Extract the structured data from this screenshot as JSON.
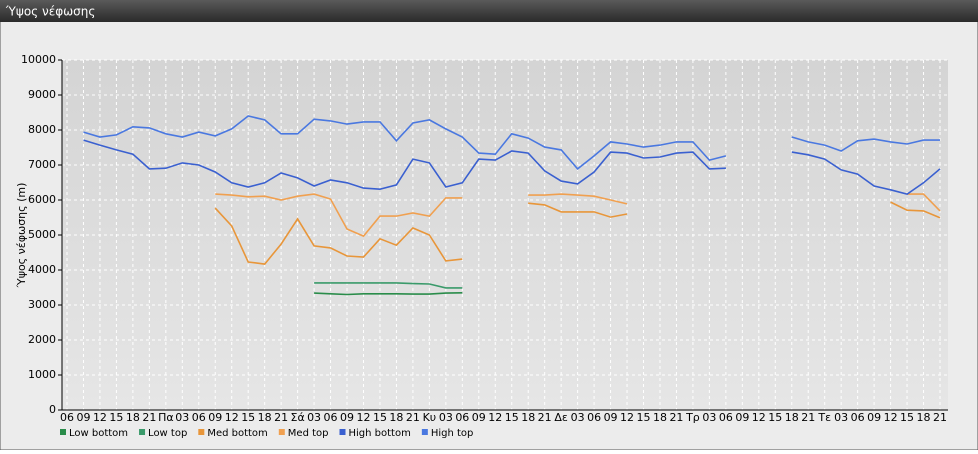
{
  "chart_data": {
    "type": "line",
    "title": "Ύψος νέφωσης",
    "y_label": "Ύψος νέφωσης (m)",
    "categories": [
      "06",
      "09",
      "12",
      "15",
      "18",
      "21",
      "Πα",
      "03",
      "06",
      "09",
      "12",
      "15",
      "18",
      "21",
      "Σά",
      "03",
      "06",
      "09",
      "12",
      "15",
      "18",
      "21",
      "Κυ",
      "03",
      "06",
      "09",
      "12",
      "15",
      "18",
      "21",
      "Δε",
      "03",
      "06",
      "09",
      "12",
      "15",
      "18",
      "21",
      "Τρ",
      "03",
      "06",
      "09",
      "12",
      "15",
      "18",
      "21",
      "Τε",
      "03",
      "06",
      "09",
      "12",
      "15",
      "18",
      "21"
    ],
    "ylim": [
      0,
      10000
    ],
    "yticks": [
      0,
      1000,
      2000,
      3000,
      4000,
      5000,
      6000,
      7000,
      8000,
      9000,
      10000
    ],
    "grid": true,
    "legend": "bottom",
    "series": [
      {
        "name": "Low bottom",
        "color": "#2a8c4a",
        "values": [
          null,
          null,
          null,
          null,
          null,
          null,
          null,
          null,
          null,
          null,
          null,
          null,
          null,
          null,
          null,
          3340,
          3320,
          3300,
          3320,
          3320,
          3320,
          3310,
          3310,
          3340,
          3350,
          null,
          null,
          null,
          null,
          null,
          null,
          null,
          null,
          null,
          null,
          null,
          null,
          null,
          null,
          null,
          null,
          null,
          null,
          null,
          null,
          null,
          null,
          null,
          null,
          null,
          null,
          null,
          null,
          null
        ]
      },
      {
        "name": "Low top",
        "color": "#3a9a6a",
        "values": [
          null,
          null,
          null,
          null,
          null,
          null,
          null,
          null,
          null,
          null,
          null,
          null,
          null,
          null,
          null,
          3630,
          3630,
          3630,
          3630,
          3630,
          3630,
          3610,
          3600,
          3490,
          3490,
          null,
          null,
          null,
          null,
          null,
          null,
          null,
          null,
          null,
          null,
          null,
          null,
          null,
          null,
          null,
          null,
          null,
          null,
          null,
          null,
          null,
          null,
          null,
          null,
          null,
          null,
          null,
          null,
          null
        ]
      },
      {
        "name": "Med bottom",
        "color": "#e8963a",
        "values": [
          null,
          null,
          null,
          null,
          null,
          null,
          null,
          null,
          null,
          5770,
          5260,
          4230,
          4170,
          4740,
          5460,
          4690,
          4630,
          4400,
          4370,
          4890,
          4710,
          5200,
          5000,
          4260,
          4310,
          null,
          null,
          null,
          5910,
          5860,
          5660,
          5660,
          5660,
          5510,
          5600,
          null,
          null,
          null,
          null,
          null,
          null,
          null,
          null,
          null,
          null,
          null,
          null,
          null,
          null,
          null,
          5940,
          5710,
          5690,
          5490
        ]
      },
      {
        "name": "Med top",
        "color": "#f0a050",
        "values": [
          null,
          null,
          null,
          null,
          null,
          null,
          null,
          null,
          null,
          6170,
          6140,
          6090,
          6110,
          6000,
          6110,
          6170,
          6030,
          5170,
          4970,
          5540,
          5540,
          5630,
          5540,
          6060,
          6060,
          null,
          null,
          null,
          6140,
          6140,
          6170,
          6140,
          6110,
          6000,
          5890,
          null,
          null,
          null,
          null,
          null,
          null,
          null,
          null,
          null,
          null,
          null,
          null,
          null,
          null,
          null,
          null,
          6170,
          6170,
          5690
        ]
      },
      {
        "name": "High bottom",
        "color": "#3a60d0",
        "values": [
          null,
          7710,
          7570,
          7430,
          7310,
          6890,
          6910,
          7060,
          7000,
          6800,
          6490,
          6370,
          6490,
          6770,
          6630,
          6400,
          6570,
          6490,
          6340,
          6310,
          6430,
          7170,
          7060,
          6370,
          6490,
          7170,
          7140,
          7400,
          7340,
          6830,
          6540,
          6460,
          6800,
          7370,
          7340,
          7200,
          7230,
          7340,
          7370,
          6890,
          6910,
          null,
          null,
          null,
          7370,
          7290,
          7170,
          6860,
          6740,
          6400,
          6290,
          6170,
          6490,
          6890
        ]
      },
      {
        "name": "High top",
        "color": "#4a78e0",
        "values": [
          null,
          7940,
          7800,
          7860,
          8090,
          8060,
          7890,
          7800,
          7940,
          7830,
          8030,
          8400,
          8290,
          7890,
          7890,
          8310,
          8260,
          8170,
          8230,
          8230,
          7690,
          8200,
          8290,
          8030,
          7800,
          7340,
          7310,
          7890,
          7770,
          7510,
          7430,
          6890,
          7260,
          7660,
          7600,
          7510,
          7570,
          7660,
          7660,
          7140,
          7260,
          null,
          null,
          null,
          7800,
          7660,
          7570,
          7400,
          7690,
          7740,
          7660,
          7600,
          7710,
          7710
        ]
      }
    ]
  }
}
